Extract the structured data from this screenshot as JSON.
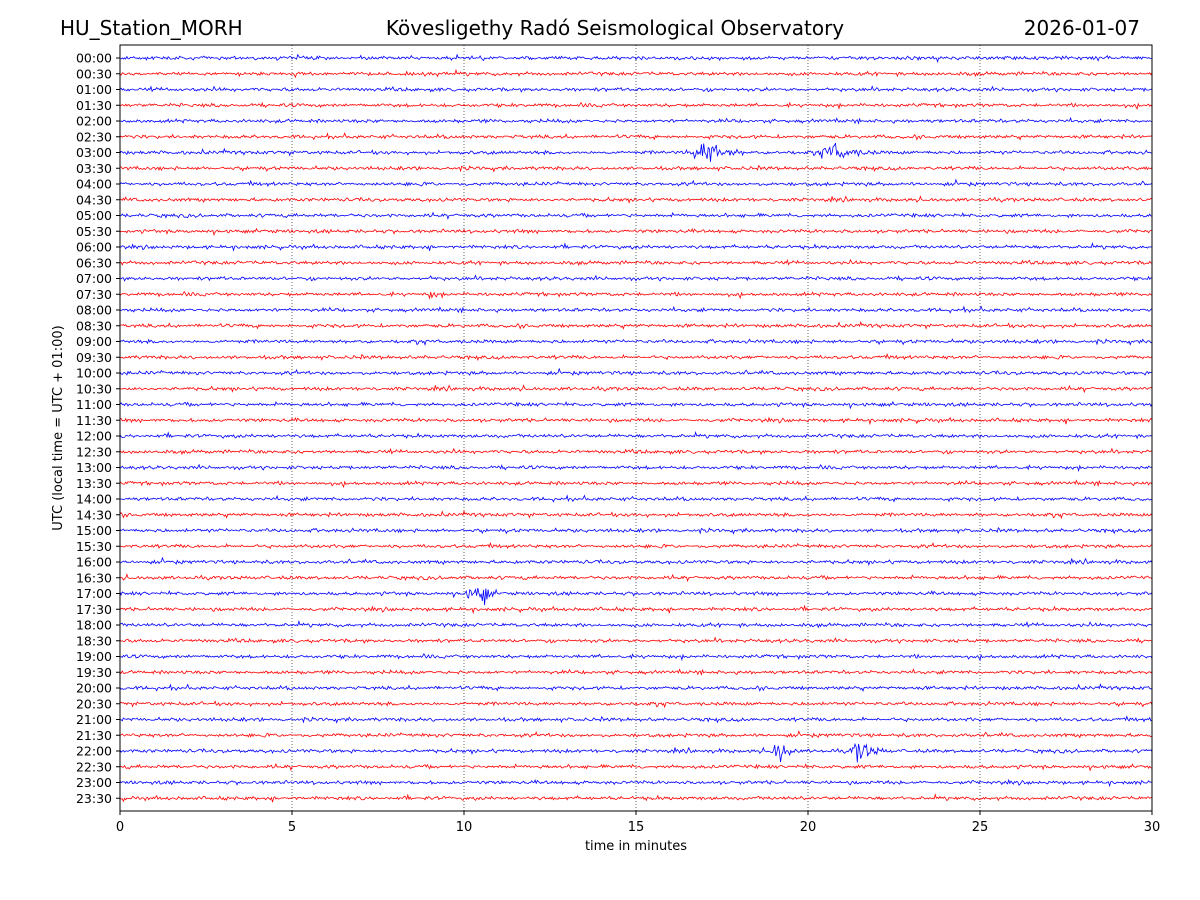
{
  "header": {
    "station": "HU_Station_MORH",
    "observatory": "Kövesligethy Radó Seismological Observatory",
    "date": "2026-01-07"
  },
  "chart_data": {
    "type": "line",
    "title": "Kövesligethy Radó Seismological Observatory",
    "xlabel": "time in minutes",
    "ylabel": "UTC (local time = UTC + 01:00)",
    "xlim": [
      0,
      30
    ],
    "x_ticks": [
      0,
      5,
      10,
      15,
      20,
      25,
      30
    ],
    "grid": "vertical dotted at 5-minute ticks",
    "row_labels": [
      "00:00",
      "00:30",
      "01:00",
      "01:30",
      "02:00",
      "02:30",
      "03:00",
      "03:30",
      "04:00",
      "04:30",
      "05:00",
      "05:30",
      "06:00",
      "06:30",
      "07:00",
      "07:30",
      "08:00",
      "08:30",
      "09:00",
      "09:30",
      "10:00",
      "10:30",
      "11:00",
      "11:30",
      "12:00",
      "12:30",
      "13:00",
      "13:30",
      "14:00",
      "14:30",
      "15:00",
      "15:30",
      "16:00",
      "16:30",
      "17:00",
      "17:30",
      "18:00",
      "18:30",
      "19:00",
      "19:30",
      "20:00",
      "20:30",
      "21:00",
      "21:30",
      "22:00",
      "22:30",
      "23:00",
      "23:30"
    ],
    "trace_colors": [
      "#0000ff",
      "#ff0000"
    ],
    "events": [
      {
        "row": "03:00",
        "start_min": 16.4,
        "end_min": 18.2,
        "peak_min": 17.2,
        "relative_amplitude": 1.0
      },
      {
        "row": "03:00",
        "start_min": 20.2,
        "end_min": 22.0,
        "peak_min": 20.8,
        "relative_amplitude": 0.65
      },
      {
        "row": "07:00",
        "start_min": 9.0,
        "end_min": 9.2,
        "peak_min": 9.1,
        "relative_amplitude": 0.25
      },
      {
        "row": "07:30",
        "start_min": 8.9,
        "end_min": 9.3,
        "peak_min": 9.1,
        "relative_amplitude": 0.3
      },
      {
        "row": "17:00",
        "start_min": 9.9,
        "end_min": 11.0,
        "peak_min": 10.6,
        "relative_amplitude": 0.7
      },
      {
        "row": "22:00",
        "start_min": 18.9,
        "end_min": 19.7,
        "peak_min": 19.2,
        "relative_amplitude": 1.0
      },
      {
        "row": "22:00",
        "start_min": 21.2,
        "end_min": 22.4,
        "peak_min": 21.5,
        "relative_amplitude": 0.85
      }
    ]
  }
}
